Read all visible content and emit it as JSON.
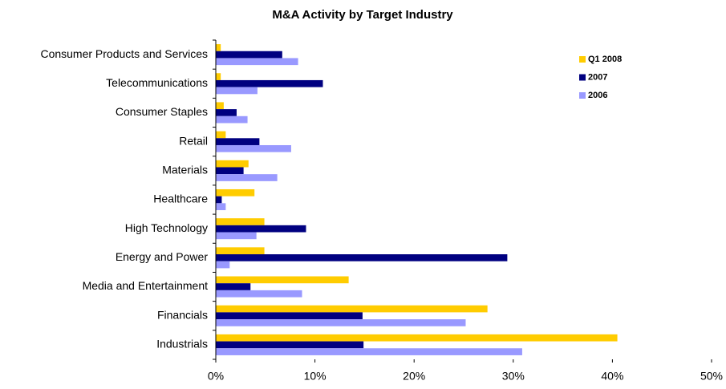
{
  "chart_data": {
    "type": "hbar",
    "title": "M&A Activity by Target Industry",
    "categories": [
      "Consumer Products and Services",
      "Telecommunications",
      "Consumer Staples",
      "Retail",
      "Materials",
      "Healthcare",
      "High Technology",
      "Energy and Power",
      "Media and Entertainment",
      "Financials",
      "Industrials"
    ],
    "series": [
      {
        "name": "Q1 2008",
        "color": "#ffcc00",
        "values": [
          0.5,
          0.5,
          0.8,
          1.0,
          3.3,
          3.9,
          4.9,
          4.9,
          13.4,
          27.4,
          40.5
        ]
      },
      {
        "name": "2007",
        "color": "#000080",
        "values": [
          6.7,
          10.8,
          2.1,
          4.4,
          2.8,
          0.6,
          9.1,
          29.4,
          3.5,
          14.8,
          14.9
        ]
      },
      {
        "name": "2006",
        "color": "#9999ff",
        "values": [
          8.3,
          4.2,
          3.2,
          7.6,
          6.2,
          1.0,
          4.1,
          1.4,
          8.7,
          25.2,
          30.9
        ]
      }
    ],
    "xlim": [
      0,
      50
    ],
    "xticks": [
      {
        "value": 0,
        "label": "0%"
      },
      {
        "value": 10,
        "label": "10%"
      },
      {
        "value": 20,
        "label": "20%"
      },
      {
        "value": 30,
        "label": "30%"
      },
      {
        "value": 40,
        "label": "40%"
      },
      {
        "value": 50,
        "label": "50%"
      }
    ],
    "legend": "upper right"
  }
}
